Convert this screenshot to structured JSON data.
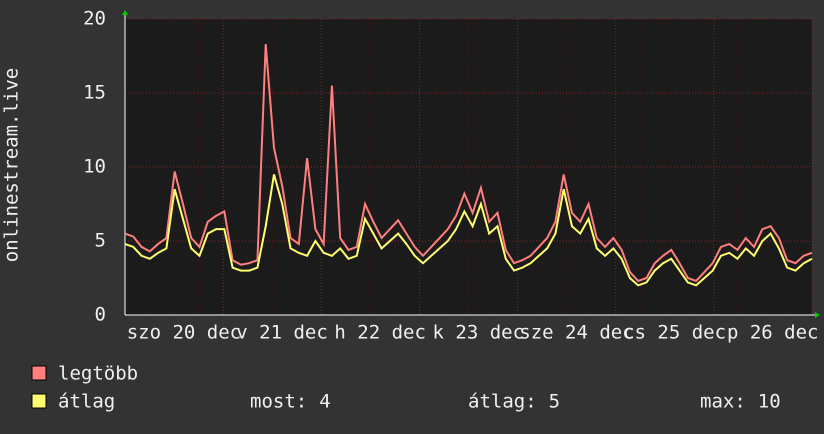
{
  "chart_data": {
    "type": "line",
    "y_label": "onlinestream.live",
    "x_labels": [
      "szo 20 dec",
      "v 21 dec",
      "h 22 dec",
      "k 23 dec",
      "sze 24 dec",
      "cs 25 dec",
      "p 26 dec"
    ],
    "ylim": [
      0,
      20
    ],
    "yticks": [
      0,
      5,
      10,
      15,
      20
    ],
    "grid": true,
    "series": [
      {
        "name": "legtöbb",
        "color": "#ff7f7f",
        "values": [
          5.5,
          5.3,
          4.6,
          4.3,
          4.8,
          5.2,
          9.7,
          7.5,
          5.2,
          4.6,
          6.3,
          6.7,
          7.0,
          3.7,
          3.4,
          3.5,
          3.7,
          18.3,
          11.3,
          8.7,
          5.2,
          4.8,
          10.6,
          5.8,
          4.8,
          15.5,
          5.2,
          4.4,
          4.6,
          7.5,
          6.3,
          5.2,
          5.8,
          6.4,
          5.5,
          4.6,
          4.0,
          4.6,
          5.2,
          5.8,
          6.7,
          8.2,
          6.9,
          8.6,
          6.3,
          6.9,
          4.4,
          3.5,
          3.7,
          4.0,
          4.6,
          5.2,
          6.3,
          9.5,
          6.9,
          6.3,
          7.5,
          5.2,
          4.6,
          5.2,
          4.4,
          2.9,
          2.3,
          2.5,
          3.5,
          4.0,
          4.4,
          3.5,
          2.5,
          2.3,
          2.9,
          3.5,
          4.6,
          4.8,
          4.4,
          5.2,
          4.6,
          5.8,
          6.0,
          5.2,
          3.7,
          3.5,
          4.0,
          4.2
        ]
      },
      {
        "name": "átlag",
        "color": "#ffff70",
        "values": [
          4.8,
          4.6,
          4.0,
          3.8,
          4.2,
          4.5,
          8.5,
          6.5,
          4.5,
          4.0,
          5.5,
          5.8,
          5.8,
          3.2,
          3.0,
          3.0,
          3.2,
          6.0,
          9.5,
          7.5,
          4.5,
          4.2,
          4.0,
          5.0,
          4.2,
          4.0,
          4.5,
          3.8,
          4.0,
          6.5,
          5.5,
          4.5,
          5.0,
          5.5,
          4.8,
          4.0,
          3.5,
          4.0,
          4.5,
          5.0,
          5.8,
          7.0,
          6.0,
          7.5,
          5.5,
          6.0,
          3.8,
          3.0,
          3.2,
          3.5,
          4.0,
          4.5,
          5.5,
          8.5,
          6.0,
          5.5,
          6.5,
          4.5,
          4.0,
          4.5,
          3.8,
          2.5,
          2.0,
          2.2,
          3.0,
          3.5,
          3.8,
          3.0,
          2.2,
          2.0,
          2.5,
          3.0,
          4.0,
          4.2,
          3.8,
          4.5,
          4.0,
          5.0,
          5.5,
          4.5,
          3.2,
          3.0,
          3.5,
          3.8
        ]
      }
    ],
    "stats": [
      {
        "label": "most:",
        "value": 4
      },
      {
        "label": "átlag:",
        "value": 5
      },
      {
        "label": "max:",
        "value": 10
      }
    ]
  }
}
